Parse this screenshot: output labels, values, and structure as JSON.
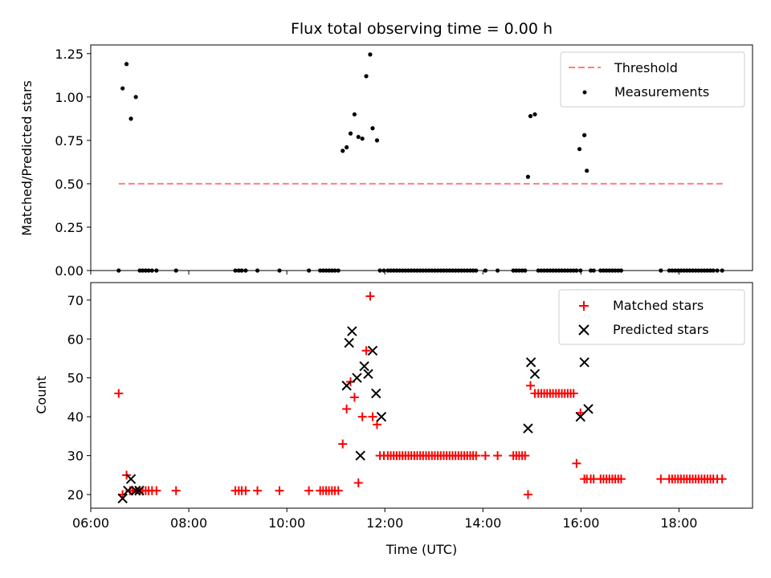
{
  "chart_data": [
    {
      "type": "scatter",
      "title": "Flux total observing time = 0.00 h",
      "xlabel": "",
      "ylabel": "Matched/Predicted stars",
      "xlim": [
        6.0,
        19.5
      ],
      "ylim": [
        0,
        1.3
      ],
      "yticks": [
        0,
        0.25,
        0.5,
        0.75,
        1.0,
        1.25
      ],
      "ytick_labels": [
        "0.00",
        "0.25",
        "0.50",
        "0.75",
        "1.00",
        "1.25"
      ],
      "legend_position": "top-right",
      "threshold": {
        "name": "Threshold",
        "color": "#ff7f7f",
        "value": 0.5,
        "x_range": [
          6.57,
          18.9
        ]
      },
      "series": [
        {
          "name": "Measurements",
          "color": "#000000",
          "x": [
            6.57,
            6.65,
            6.73,
            6.82,
            6.92,
            7.0,
            7.06,
            7.12,
            7.18,
            7.25,
            7.34,
            7.74,
            8.95,
            9.02,
            9.08,
            9.16,
            9.4,
            9.85,
            10.45,
            10.68,
            10.74,
            10.8,
            10.86,
            10.92,
            10.98,
            11.05,
            11.14,
            11.22,
            11.3,
            11.38,
            11.46,
            11.54,
            11.62,
            11.7,
            11.75,
            11.84,
            11.9,
            11.98,
            12.06,
            12.12,
            12.18,
            12.24,
            12.3,
            12.36,
            12.42,
            12.48,
            12.54,
            12.6,
            12.66,
            12.72,
            12.78,
            12.84,
            12.9,
            12.96,
            13.02,
            13.08,
            13.14,
            13.2,
            13.26,
            13.32,
            13.38,
            13.44,
            13.5,
            13.56,
            13.62,
            13.68,
            13.74,
            13.8,
            13.86,
            14.05,
            14.3,
            14.62,
            14.68,
            14.74,
            14.8,
            14.86,
            14.92,
            14.97,
            15.06,
            15.13,
            15.19,
            15.25,
            15.31,
            15.37,
            15.43,
            15.49,
            15.55,
            15.61,
            15.67,
            15.73,
            15.79,
            15.85,
            15.91,
            15.97,
            15.99,
            16.07,
            16.12,
            16.2,
            16.26,
            16.4,
            16.46,
            16.52,
            16.58,
            16.64,
            16.7,
            16.76,
            16.82,
            17.63,
            17.8,
            17.86,
            17.92,
            17.98,
            18.04,
            18.1,
            18.16,
            18.22,
            18.28,
            18.34,
            18.4,
            18.46,
            18.52,
            18.58,
            18.64,
            18.7,
            18.78,
            18.88
          ],
          "y": [
            0,
            1.05,
            1.19,
            0.875,
            1.0,
            0,
            0,
            0,
            0,
            0,
            0,
            0,
            0,
            0,
            0,
            0,
            0,
            0,
            0,
            0,
            0,
            0,
            0,
            0,
            0,
            0,
            0.69,
            0.71,
            0.79,
            0.9,
            0.77,
            0.76,
            1.12,
            1.245,
            0.82,
            0.75,
            0,
            0,
            0,
            0,
            0,
            0,
            0,
            0,
            0,
            0,
            0,
            0,
            0,
            0,
            0,
            0,
            0,
            0,
            0,
            0,
            0,
            0,
            0,
            0,
            0,
            0,
            0,
            0,
            0,
            0,
            0,
            0,
            0,
            0,
            0,
            0,
            0,
            0,
            0,
            0,
            0.54,
            0.89,
            0.9,
            0,
            0,
            0,
            0,
            0,
            0,
            0,
            0,
            0,
            0,
            0,
            0,
            0,
            0,
            0.7,
            0,
            0.78,
            0.575,
            0,
            0,
            0,
            0,
            0,
            0,
            0,
            0,
            0,
            0,
            0,
            0,
            0,
            0,
            0,
            0,
            0,
            0,
            0,
            0,
            0,
            0,
            0,
            0,
            0,
            0,
            0,
            0,
            0
          ]
        }
      ]
    },
    {
      "type": "scatter",
      "title": "",
      "xlabel": "Time (UTC)",
      "ylabel": "Count",
      "xlim": [
        6.0,
        19.5
      ],
      "ylim": [
        16.5,
        74.5
      ],
      "xticks": [
        6,
        8,
        10,
        12,
        14,
        16,
        18
      ],
      "xtick_labels": [
        "06:00",
        "08:00",
        "10:00",
        "12:00",
        "14:00",
        "16:00",
        "18:00"
      ],
      "yticks": [
        20,
        30,
        40,
        50,
        60,
        70
      ],
      "ytick_labels": [
        "20",
        "30",
        "40",
        "50",
        "60",
        "70"
      ],
      "legend_position": "top-right",
      "series": [
        {
          "name": "Matched stars",
          "color": "#ff0000",
          "marker": "plus",
          "x": [
            6.57,
            6.65,
            6.73,
            6.8,
            6.85,
            6.92,
            7.0,
            7.06,
            7.12,
            7.18,
            7.25,
            7.34,
            7.74,
            8.95,
            9.02,
            9.08,
            9.16,
            9.4,
            9.85,
            10.45,
            10.68,
            10.74,
            10.8,
            10.86,
            10.92,
            10.98,
            11.05,
            11.14,
            11.22,
            11.3,
            11.38,
            11.46,
            11.54,
            11.62,
            11.7,
            11.75,
            11.84,
            11.9,
            11.98,
            12.06,
            12.12,
            12.18,
            12.24,
            12.3,
            12.36,
            12.42,
            12.48,
            12.54,
            12.6,
            12.66,
            12.72,
            12.78,
            12.84,
            12.9,
            12.96,
            13.02,
            13.08,
            13.14,
            13.2,
            13.26,
            13.32,
            13.38,
            13.44,
            13.5,
            13.56,
            13.62,
            13.68,
            13.74,
            13.8,
            13.86,
            14.05,
            14.3,
            14.62,
            14.68,
            14.74,
            14.8,
            14.86,
            14.92,
            14.97,
            15.06,
            15.13,
            15.19,
            15.25,
            15.31,
            15.37,
            15.43,
            15.49,
            15.55,
            15.61,
            15.67,
            15.73,
            15.79,
            15.85,
            15.91,
            15.99,
            16.07,
            16.12,
            16.2,
            16.26,
            16.4,
            16.46,
            16.52,
            16.58,
            16.64,
            16.7,
            16.76,
            16.82,
            17.63,
            17.8,
            17.86,
            17.92,
            17.98,
            18.04,
            18.1,
            18.16,
            18.22,
            18.28,
            18.34,
            18.4,
            18.46,
            18.52,
            18.58,
            18.64,
            18.7,
            18.78,
            18.88
          ],
          "y": [
            46,
            20,
            25,
            21,
            21,
            21,
            21,
            21,
            21,
            21,
            21,
            21,
            21,
            21,
            21,
            21,
            21,
            21,
            21,
            21,
            21,
            21,
            21,
            21,
            21,
            21,
            21,
            33,
            42,
            49,
            45,
            23,
            40,
            57,
            71,
            40,
            38,
            30,
            30,
            30,
            30,
            30,
            30,
            30,
            30,
            30,
            30,
            30,
            30,
            30,
            30,
            30,
            30,
            30,
            30,
            30,
            30,
            30,
            30,
            30,
            30,
            30,
            30,
            30,
            30,
            30,
            30,
            30,
            30,
            30,
            30,
            30,
            30,
            30,
            30,
            30,
            30,
            20,
            48,
            46,
            46,
            46,
            46,
            46,
            46,
            46,
            46,
            46,
            46,
            46,
            46,
            46,
            46,
            28,
            41,
            24,
            24,
            24,
            24,
            24,
            24,
            24,
            24,
            24,
            24,
            24,
            24,
            24,
            24,
            24,
            24,
            24,
            24,
            24,
            24,
            24,
            24,
            24,
            24,
            24,
            24,
            24,
            24,
            24,
            24,
            24
          ]
        },
        {
          "name": "Predicted stars",
          "color": "#000000",
          "marker": "x",
          "x": [
            6.65,
            6.76,
            6.82,
            6.92,
            6.99,
            11.22,
            11.27,
            11.33,
            11.43,
            11.5,
            11.58,
            11.66,
            11.75,
            11.82,
            11.93,
            14.92,
            14.98,
            15.06,
            15.99,
            16.07,
            16.15
          ],
          "y": [
            19,
            21,
            24,
            21,
            21,
            48,
            59,
            62,
            50,
            30,
            53,
            51,
            57,
            46,
            40,
            37,
            54,
            51,
            40,
            54,
            42
          ]
        }
      ]
    }
  ]
}
